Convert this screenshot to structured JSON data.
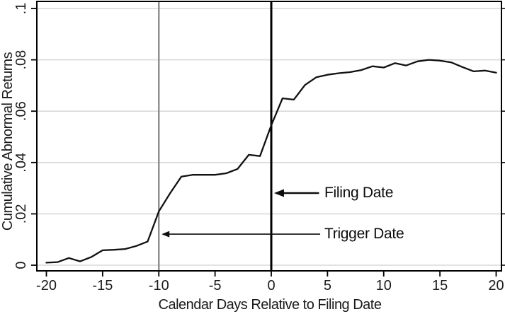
{
  "chart_data": {
    "type": "line",
    "title": "",
    "xlabel": "Calendar Days Relative to Filing Date",
    "ylabel": "Cumulative Abnormal Returns",
    "x": [
      -20,
      -19,
      -18,
      -17,
      -16,
      -15,
      -14,
      -13,
      -12,
      -11,
      -10,
      -9,
      -8,
      -7,
      -6,
      -5,
      -4,
      -3,
      -2,
      -1,
      0,
      1,
      2,
      3,
      4,
      5,
      6,
      7,
      8,
      9,
      10,
      11,
      12,
      13,
      14,
      15,
      16,
      17,
      18,
      19,
      20
    ],
    "series": [
      {
        "name": "Cumulative Abnormal Returns",
        "values": [
          0.001,
          0.0012,
          0.0028,
          0.0015,
          0.0032,
          0.0058,
          0.006,
          0.0063,
          0.0075,
          0.0092,
          0.021,
          0.028,
          0.0345,
          0.0352,
          0.0352,
          0.0352,
          0.0358,
          0.0375,
          0.043,
          0.0425,
          0.0545,
          0.065,
          0.0645,
          0.0702,
          0.0732,
          0.0742,
          0.0748,
          0.0752,
          0.076,
          0.0775,
          0.077,
          0.0787,
          0.0778,
          0.0794,
          0.08,
          0.0797,
          0.079,
          0.0772,
          0.0755,
          0.0758,
          0.075
        ]
      }
    ],
    "xlim": [
      -20.85,
      20.47
    ],
    "ylim": [
      -0.0022,
      0.1028
    ],
    "x_ticks": {
      "values": [
        -20,
        -15,
        -10,
        -5,
        0,
        5,
        10,
        15,
        20
      ],
      "labels": [
        "-20",
        "-15",
        "-10",
        "-5",
        "0",
        "5",
        "10",
        "15",
        "20"
      ]
    },
    "y_ticks": {
      "values": [
        0,
        0.02,
        0.04,
        0.06,
        0.08,
        0.1
      ],
      "labels": [
        "0",
        ".02",
        ".04",
        ".06",
        ".08",
        ".1"
      ]
    },
    "grid": "horizontal",
    "legend": "none",
    "reference_lines": [
      {
        "name": "trigger-date-line",
        "axis": "x",
        "value": -10,
        "color": "#8c8c8c",
        "width": 2.4
      },
      {
        "name": "filing-date-line",
        "axis": "x",
        "value": 0,
        "color": "#000000",
        "width": 3
      }
    ],
    "annotations": [
      {
        "label": "Filing Date",
        "y": 0.0281,
        "arrow_tip_day": 0.25,
        "arrow_tail_day": 4.25,
        "text_day": 4.7,
        "arrow_width": 2.5,
        "head_w": 14,
        "head_h": 11
      },
      {
        "label": "Trigger Date",
        "y": 0.0121,
        "arrow_tip_day": -9.75,
        "arrow_tail_day": 4.35,
        "text_day": 4.75,
        "arrow_width": 1.6,
        "head_w": 11,
        "head_h": 9
      }
    ]
  },
  "colors": {
    "line": "#111111",
    "grid": "#d9d9d9",
    "border": "#000000",
    "tick": "#000000",
    "text": "#1a1a1a",
    "annotation": "#0d0d0d",
    "background": "#ffffff"
  }
}
